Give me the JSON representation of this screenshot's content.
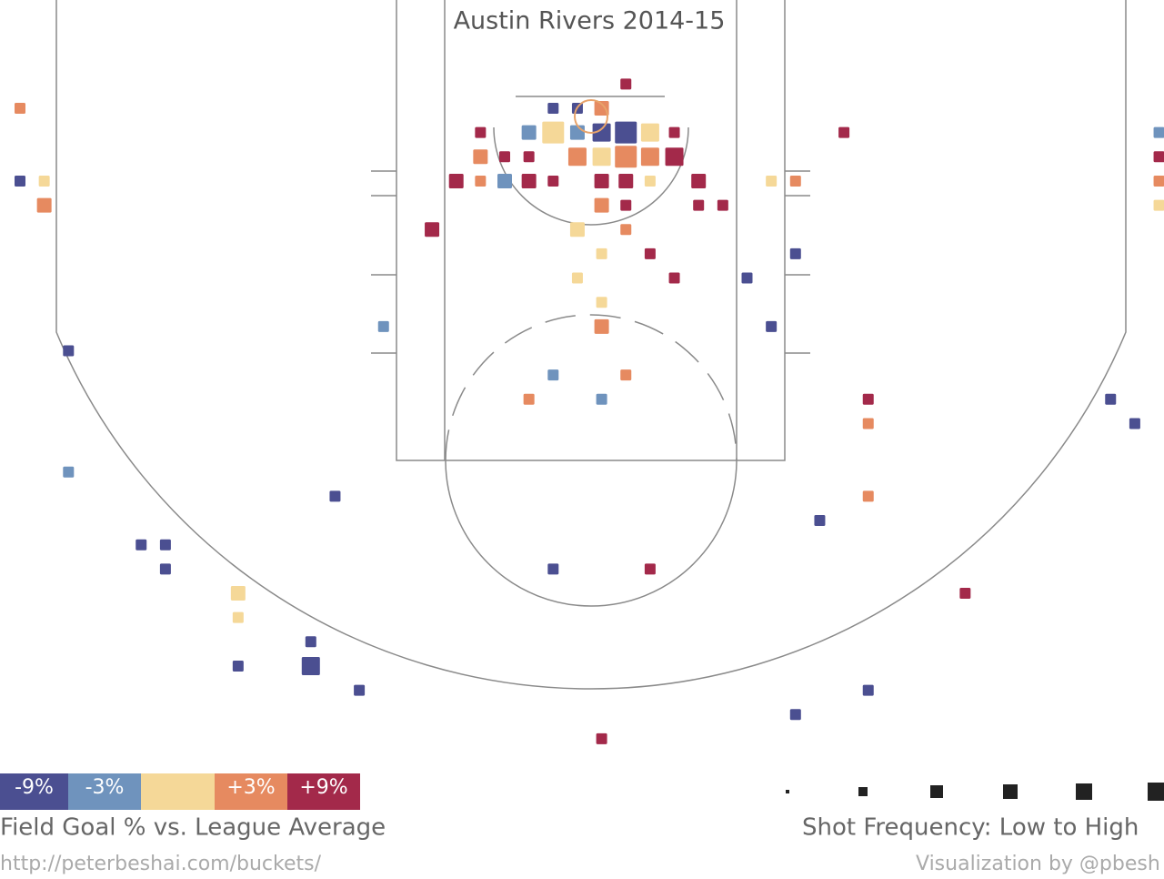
{
  "chart_data": {
    "type": "scatter",
    "title": "Austin Rivers 2014-15",
    "x": [
      0,
      0,
      1,
      1,
      2,
      2,
      5,
      6,
      6,
      9,
      9,
      9,
      12,
      12,
      14,
      13,
      15,
      17,
      25,
      22,
      23,
      24,
      19,
      21,
      22,
      23,
      24,
      25,
      26,
      27,
      19,
      20,
      21,
      23,
      24,
      25,
      26,
      27,
      18,
      19,
      20,
      21,
      22,
      24,
      25,
      26,
      28,
      24,
      25,
      28,
      29,
      23,
      25,
      24,
      26,
      23,
      27,
      24,
      24,
      22,
      25,
      21,
      24,
      30,
      31,
      32,
      31,
      32,
      34,
      35,
      35,
      35,
      33,
      22,
      26,
      39,
      35,
      32,
      24,
      45,
      46,
      47,
      47,
      47,
      47
    ],
    "y": [
      0,
      3,
      3,
      4,
      10,
      15,
      18,
      18,
      19,
      20,
      21,
      23,
      22,
      23,
      24,
      16,
      9,
      5,
      -1,
      0,
      0,
      0,
      1,
      1,
      1,
      1,
      1,
      1,
      1,
      1,
      2,
      2,
      2,
      2,
      2,
      2,
      2,
      2,
      3,
      3,
      3,
      3,
      3,
      3,
      3,
      3,
      3,
      4,
      4,
      4,
      4,
      5,
      5,
      6,
      6,
      7,
      7,
      8,
      9,
      11,
      11,
      12,
      12,
      7,
      9,
      6,
      3,
      3,
      1,
      12,
      13,
      16,
      17,
      19,
      19,
      20,
      24,
      25,
      26,
      12,
      13,
      1,
      2,
      3,
      4
    ],
    "sizes": [
      2,
      2,
      2,
      3,
      2,
      2,
      2,
      2,
      2,
      3,
      2,
      2,
      2,
      4,
      2,
      2,
      2,
      3,
      2,
      2,
      2,
      3,
      2,
      3,
      5,
      3,
      4,
      5,
      4,
      2,
      3,
      2,
      2,
      4,
      4,
      5,
      4,
      4,
      3,
      2,
      3,
      3,
      2,
      3,
      3,
      2,
      3,
      3,
      2,
      2,
      2,
      3,
      2,
      2,
      2,
      2,
      2,
      2,
      3,
      2,
      2,
      2,
      2,
      2,
      2,
      2,
      2,
      2,
      2,
      2,
      2,
      2,
      2,
      2,
      2,
      2,
      2,
      2,
      2,
      2,
      2,
      2,
      2,
      2,
      2
    ],
    "values": [
      3,
      -9,
      0,
      3,
      -9,
      -3,
      -9,
      -9,
      -9,
      0,
      0,
      -9,
      -9,
      -9,
      -9,
      -9,
      -3,
      9,
      9,
      -9,
      -9,
      3,
      9,
      -3,
      0,
      -3,
      -9,
      -9,
      0,
      9,
      3,
      9,
      9,
      3,
      0,
      3,
      3,
      9,
      9,
      3,
      -3,
      9,
      9,
      9,
      9,
      0,
      9,
      3,
      9,
      9,
      9,
      0,
      3,
      0,
      9,
      0,
      9,
      0,
      3,
      -3,
      3,
      3,
      -3,
      -9,
      -9,
      -9,
      0,
      3,
      9,
      9,
      3,
      3,
      -9,
      -9,
      9,
      9,
      -9,
      -9,
      9,
      -9,
      -9,
      -3,
      9,
      3,
      0
    ],
    "color_scale": [
      {
        "value": -9,
        "label": "-9%",
        "color": "#4b4f91"
      },
      {
        "value": -3,
        "label": "-3%",
        "color": "#6f93bd"
      },
      {
        "value": 0,
        "color": "#f5d898"
      },
      {
        "value": 3,
        "label": "+3%",
        "color": "#e68a60"
      },
      {
        "value": 9,
        "label": "+9%",
        "color": "#a3294a"
      }
    ],
    "color_title": "Field Goal % vs. League Average",
    "size_title": "Shot Frequency: Low to High",
    "source": "http://peterbeshai.com/buckets/",
    "credit": "Visualization by @pbesh"
  }
}
